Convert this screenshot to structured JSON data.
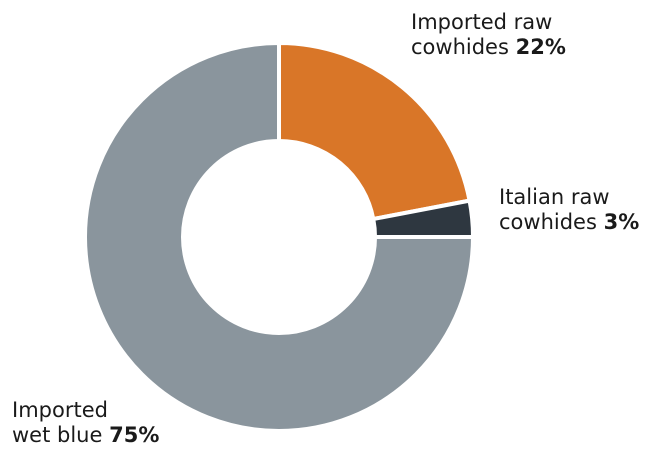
{
  "chart_data": {
    "type": "donut",
    "title": "",
    "slices": [
      {
        "line1": "Imported raw",
        "line2": "cowhides",
        "value": 22,
        "value_label": "22%",
        "color": "#d97628"
      },
      {
        "line1": "Italian raw",
        "line2": "cowhides",
        "value": 3,
        "value_label": "3%",
        "color": "#2e3740"
      },
      {
        "line1": "Imported",
        "line2": "wet blue",
        "value": 75,
        "value_label": "75%",
        "color": "#8a959d"
      }
    ],
    "start_angle_deg": 0,
    "direction": "clockwise",
    "separator_color": "#ffffff"
  }
}
